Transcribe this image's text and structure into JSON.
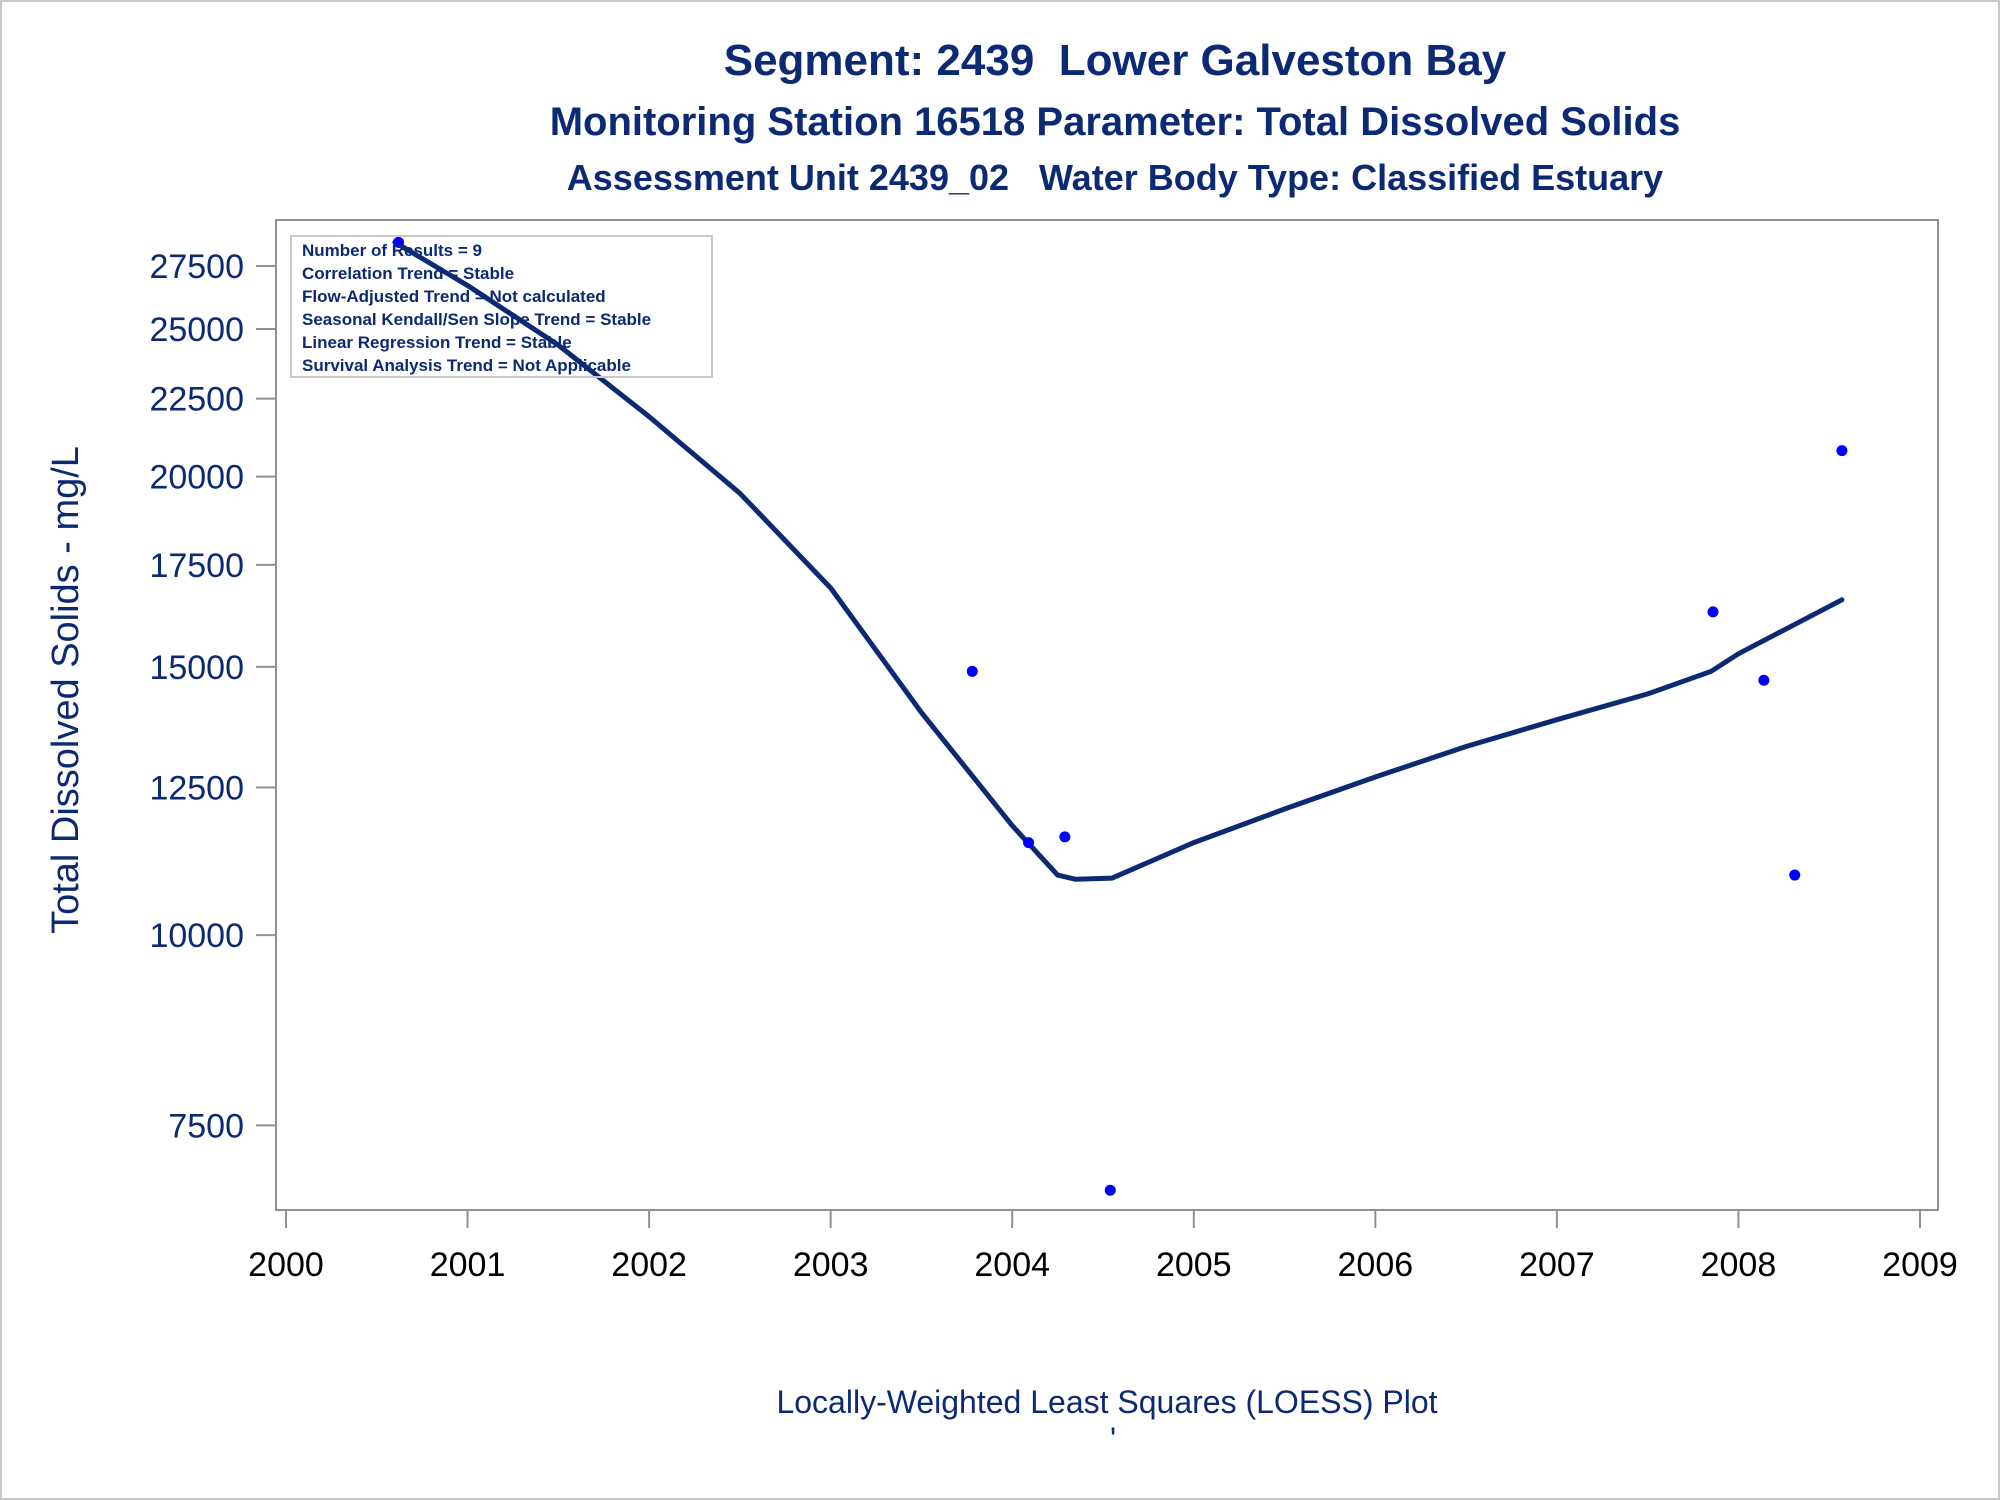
{
  "chart_data": {
    "type": "scatter",
    "title": "Segment: 2439  Lower Galveston Bay",
    "subtitle": "Monitoring Station 16518 Parameter: Total Dissolved Solids",
    "subtitle2": "Assessment Unit 2439_02   Water Body Type: Classified Estuary",
    "xlabel": "",
    "ylabel": "Total Dissolved Solids - mg/L",
    "footnote": "Locally-Weighted Least Squares (LOESS) Plot",
    "footnote_mark": "'",
    "yscale": "log",
    "xlim": [
      2000,
      2009
    ],
    "ylim": [
      6700,
      28600
    ],
    "x_ticks": [
      "2000",
      "2001",
      "2002",
      "2003",
      "2004",
      "2005",
      "2006",
      "2007",
      "2008",
      "2009"
    ],
    "y_ticks": [
      "7500",
      "10000",
      "12500",
      "15000",
      "17500",
      "20000",
      "22500",
      "25000",
      "27500"
    ],
    "grid": false,
    "stats_box": {
      "placement": "top-left",
      "lines": [
        "Number of Results = 9",
        "Correlation Trend = Stable",
        "Flow-Adjusted Trend = Not calculated",
        "Seasonal Kendall/Sen Slope Trend = Stable",
        "Linear Regression Trend = Stable",
        "Survival Analysis Trend = Not Applicable"
      ]
    },
    "series": [
      {
        "type": "scatter",
        "color": "#0000ff",
        "points": [
          {
            "x": 2000.62,
            "y": 28500
          },
          {
            "x": 2003.78,
            "y": 14900
          },
          {
            "x": 2004.09,
            "y": 11500
          },
          {
            "x": 2004.29,
            "y": 11600
          },
          {
            "x": 2004.54,
            "y": 6800
          },
          {
            "x": 2007.86,
            "y": 16300
          },
          {
            "x": 2008.14,
            "y": 14700
          },
          {
            "x": 2008.31,
            "y": 10950
          },
          {
            "x": 2008.57,
            "y": 20800
          }
        ]
      },
      {
        "type": "line",
        "color": "#0c2a73",
        "points": [
          {
            "x": 2000.6,
            "y": 28500
          },
          {
            "x": 2001.0,
            "y": 26700
          },
          {
            "x": 2001.5,
            "y": 24400
          },
          {
            "x": 2002.0,
            "y": 21900
          },
          {
            "x": 2002.5,
            "y": 19500
          },
          {
            "x": 2003.0,
            "y": 16900
          },
          {
            "x": 2003.5,
            "y": 14000
          },
          {
            "x": 2004.0,
            "y": 11800
          },
          {
            "x": 2004.25,
            "y": 10950
          },
          {
            "x": 2004.35,
            "y": 10880
          },
          {
            "x": 2004.55,
            "y": 10900
          },
          {
            "x": 2005.0,
            "y": 11500
          },
          {
            "x": 2005.5,
            "y": 12100
          },
          {
            "x": 2006.0,
            "y": 12700
          },
          {
            "x": 2006.5,
            "y": 13300
          },
          {
            "x": 2007.0,
            "y": 13850
          },
          {
            "x": 2007.5,
            "y": 14400
          },
          {
            "x": 2007.85,
            "y": 14900
          },
          {
            "x": 2008.0,
            "y": 15300
          },
          {
            "x": 2008.57,
            "y": 16600
          }
        ]
      }
    ]
  }
}
